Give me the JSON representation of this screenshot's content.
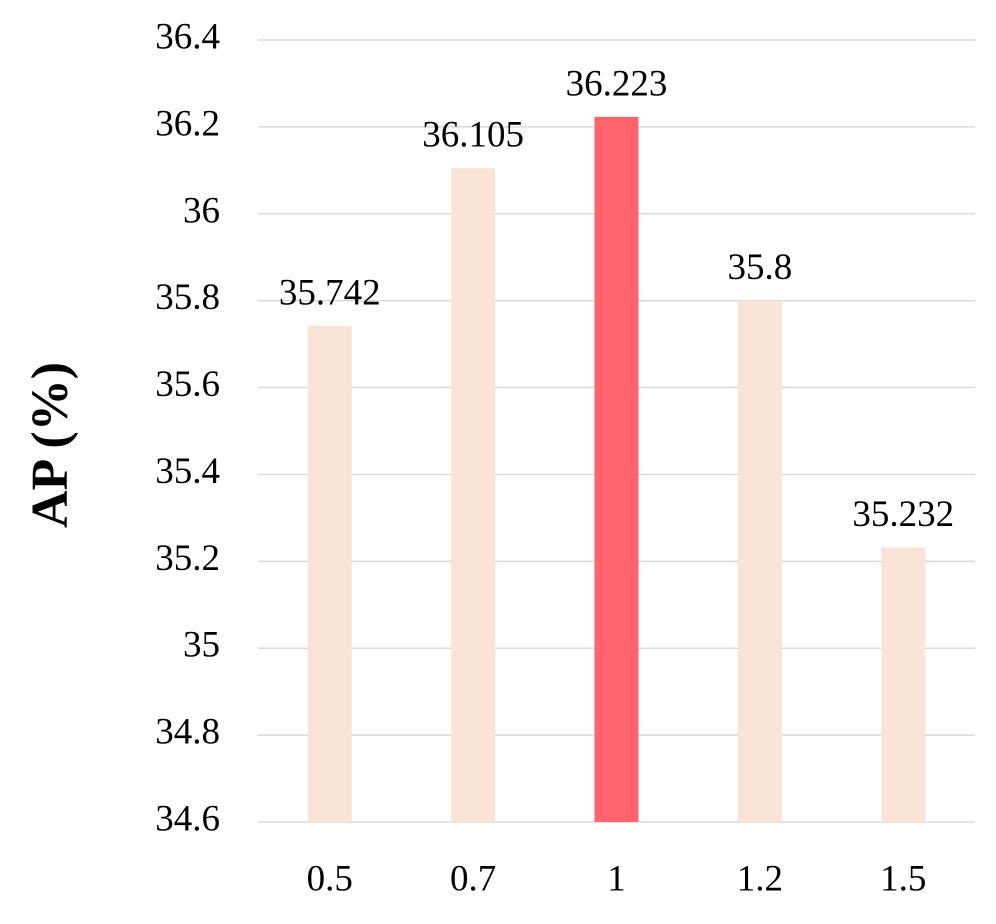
{
  "chart_data": {
    "type": "bar",
    "y_label": "AP (%)",
    "categories": [
      "0.5",
      "0.7",
      "1",
      "1.2",
      "1.5"
    ],
    "values": [
      35.742,
      36.105,
      36.223,
      35.8,
      35.232
    ],
    "colors": [
      "#fae3d7",
      "#fae3d7",
      "#ff636b",
      "#fae3d7",
      "#fae3d7"
    ],
    "ylim": [
      34.6,
      36.4
    ],
    "yticks": [
      34.6,
      34.8,
      35,
      35.2,
      35.4,
      35.6,
      35.8,
      36,
      36.2,
      36.4
    ],
    "grid": true
  }
}
